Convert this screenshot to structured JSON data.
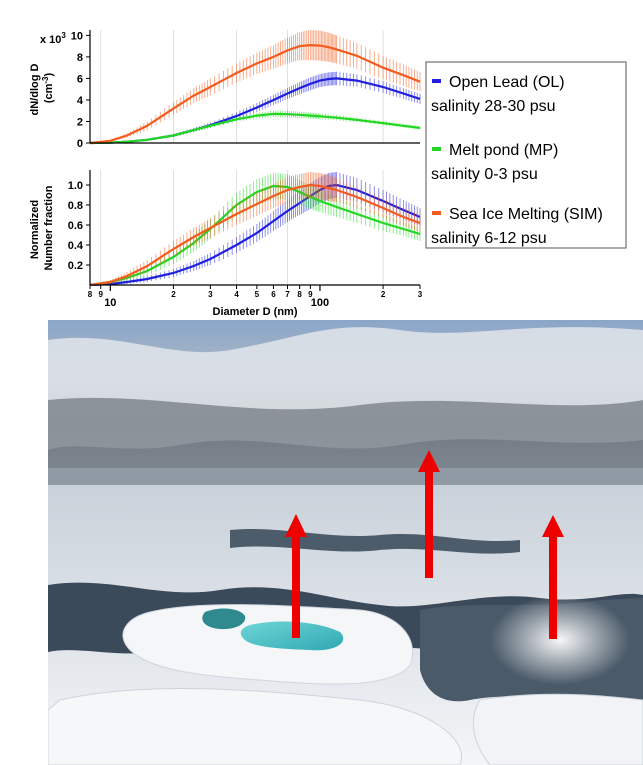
{
  "chart_data": [
    {
      "type": "line",
      "panel": "top",
      "ylabel_line1": "dN/dlog D",
      "ylabel_line2": "(cm",
      "ylabel_sup": "-3",
      "ylabel_close": ")",
      "y_multiplier_base": "x 10",
      "y_multiplier_exp": "3",
      "ylim": [
        0,
        10500
      ],
      "yticks": [
        {
          "value": 0,
          "label": "0"
        },
        {
          "value": 2000,
          "label": "2"
        },
        {
          "value": 4000,
          "label": "4"
        },
        {
          "value": 6000,
          "label": "6"
        },
        {
          "value": 8000,
          "label": "8"
        },
        {
          "value": 10000,
          "label": "10"
        }
      ],
      "xscale": "log",
      "xlim": [
        8,
        300
      ],
      "series": [
        {
          "key": "OL",
          "color": "#1f1fdc",
          "x": [
            8,
            10,
            12,
            15,
            20,
            25,
            30,
            40,
            50,
            60,
            70,
            80,
            90,
            100,
            110,
            120,
            150,
            200,
            250,
            300
          ],
          "y": [
            0,
            30,
            120,
            300,
            700,
            1200,
            1650,
            2500,
            3300,
            4000,
            4600,
            5100,
            5500,
            5800,
            5950,
            6000,
            5800,
            5200,
            4600,
            4100
          ],
          "err": [
            0,
            20,
            40,
            80,
            150,
            200,
            250,
            350,
            420,
            480,
            520,
            560,
            600,
            600,
            620,
            620,
            580,
            540,
            500,
            480
          ]
        },
        {
          "key": "MP",
          "color": "#22d622",
          "x": [
            8,
            10,
            12,
            15,
            20,
            25,
            30,
            40,
            50,
            60,
            70,
            80,
            90,
            100,
            120,
            150,
            200,
            250,
            300
          ],
          "y": [
            0,
            30,
            120,
            300,
            700,
            1200,
            1600,
            2200,
            2550,
            2700,
            2680,
            2620,
            2550,
            2480,
            2350,
            2150,
            1850,
            1600,
            1400
          ],
          "err": [
            0,
            20,
            40,
            80,
            120,
            160,
            200,
            250,
            280,
            300,
            300,
            290,
            280,
            270,
            250,
            230,
            200,
            180,
            160
          ]
        },
        {
          "key": "SIM",
          "color": "#f25c1f",
          "x": [
            8,
            10,
            12,
            15,
            20,
            25,
            30,
            40,
            50,
            60,
            70,
            80,
            90,
            100,
            110,
            120,
            150,
            200,
            250,
            300
          ],
          "y": [
            0,
            200,
            700,
            1600,
            3200,
            4400,
            5200,
            6500,
            7400,
            8000,
            8600,
            9000,
            9100,
            9050,
            8900,
            8700,
            8100,
            7000,
            6300,
            5700
          ],
          "err": [
            0,
            100,
            200,
            400,
            600,
            700,
            800,
            900,
            1000,
            1100,
            1200,
            1300,
            1400,
            1400,
            1350,
            1300,
            1200,
            1100,
            1000,
            900
          ]
        }
      ]
    },
    {
      "type": "line",
      "panel": "bottom",
      "ylabel_line1": "Normalized",
      "ylabel_line2": "Number fraction",
      "ylim": [
        0,
        1.15
      ],
      "yticks": [
        {
          "value": 0.2,
          "label": "0.2"
        },
        {
          "value": 0.4,
          "label": "0.4"
        },
        {
          "value": 0.6,
          "label": "0.6"
        },
        {
          "value": 0.8,
          "label": "0.8"
        },
        {
          "value": 1.0,
          "label": "1.0"
        }
      ],
      "xscale": "log",
      "xlim": [
        8,
        300
      ],
      "xlabel": "Diameter D (nm)",
      "xticks_major": [
        {
          "value": 10,
          "label": "10"
        },
        {
          "value": 100,
          "label": "100"
        }
      ],
      "xticks_minor": [
        {
          "value": 8,
          "label": "8"
        },
        {
          "value": 9,
          "label": "9"
        },
        {
          "value": 20,
          "label": "2"
        },
        {
          "value": 30,
          "label": "3"
        },
        {
          "value": 40,
          "label": "4"
        },
        {
          "value": 50,
          "label": "5"
        },
        {
          "value": 60,
          "label": "6"
        },
        {
          "value": 70,
          "label": "7"
        },
        {
          "value": 80,
          "label": "8"
        },
        {
          "value": 90,
          "label": "9"
        },
        {
          "value": 200,
          "label": "2"
        },
        {
          "value": 300,
          "label": "3"
        }
      ],
      "gridlines_x": [
        9,
        20,
        40,
        70,
        200
      ],
      "series": [
        {
          "key": "OL",
          "color": "#1f1fdc",
          "x": [
            8,
            10,
            12,
            15,
            20,
            25,
            30,
            40,
            50,
            60,
            70,
            80,
            90,
            100,
            110,
            120,
            150,
            200,
            250,
            300
          ],
          "y": [
            0,
            0.01,
            0.03,
            0.06,
            0.12,
            0.19,
            0.26,
            0.4,
            0.52,
            0.64,
            0.74,
            0.82,
            0.89,
            0.95,
            0.99,
            1.0,
            0.95,
            0.84,
            0.75,
            0.68
          ],
          "err": [
            0,
            0.01,
            0.02,
            0.03,
            0.04,
            0.05,
            0.06,
            0.08,
            0.09,
            0.1,
            0.11,
            0.12,
            0.13,
            0.13,
            0.13,
            0.13,
            0.12,
            0.11,
            0.1,
            0.09
          ]
        },
        {
          "key": "MP",
          "color": "#22d622",
          "x": [
            8,
            10,
            12,
            15,
            20,
            25,
            30,
            40,
            50,
            60,
            70,
            80,
            90,
            100,
            120,
            150,
            200,
            250,
            300
          ],
          "y": [
            0,
            0.03,
            0.07,
            0.14,
            0.28,
            0.42,
            0.56,
            0.8,
            0.93,
            0.99,
            0.98,
            0.93,
            0.88,
            0.84,
            0.78,
            0.71,
            0.62,
            0.56,
            0.51
          ],
          "err": [
            0,
            0.02,
            0.03,
            0.05,
            0.07,
            0.09,
            0.1,
            0.12,
            0.13,
            0.13,
            0.13,
            0.12,
            0.12,
            0.11,
            0.1,
            0.09,
            0.08,
            0.07,
            0.07
          ]
        },
        {
          "key": "SIM",
          "color": "#f25c1f",
          "x": [
            8,
            10,
            12,
            15,
            20,
            25,
            30,
            40,
            50,
            60,
            70,
            80,
            90,
            100,
            110,
            120,
            150,
            200,
            250,
            300
          ],
          "y": [
            0,
            0.03,
            0.09,
            0.19,
            0.36,
            0.48,
            0.57,
            0.71,
            0.81,
            0.89,
            0.95,
            0.98,
            1.0,
            0.99,
            0.97,
            0.95,
            0.88,
            0.77,
            0.68,
            0.62
          ],
          "err": [
            0,
            0.02,
            0.04,
            0.06,
            0.08,
            0.09,
            0.1,
            0.11,
            0.12,
            0.12,
            0.13,
            0.13,
            0.13,
            0.13,
            0.13,
            0.12,
            0.11,
            0.1,
            0.09,
            0.09
          ]
        }
      ]
    }
  ],
  "legend": [
    {
      "key": "OL",
      "color": "#1f1fdc",
      "label": "Open Lead (OL)",
      "sublabel": "salinity 28-30 psu"
    },
    {
      "key": "MP",
      "color": "#22d622",
      "label": "Melt pond (MP)",
      "sublabel": "salinity 0-3 psu"
    },
    {
      "key": "SIM",
      "color": "#f25c1f",
      "label": "Sea Ice Melting (SIM)",
      "sublabel": "salinity 6-12 psu"
    }
  ],
  "photo": {
    "colors": {
      "sky_top": "#6f8ab0",
      "cloud": "#d9dde2",
      "ice": "#eef1f4",
      "water": "#3a4a5a",
      "pond": "#47c4c8",
      "arrow": "#ee0000"
    },
    "arrows_count": 3
  }
}
